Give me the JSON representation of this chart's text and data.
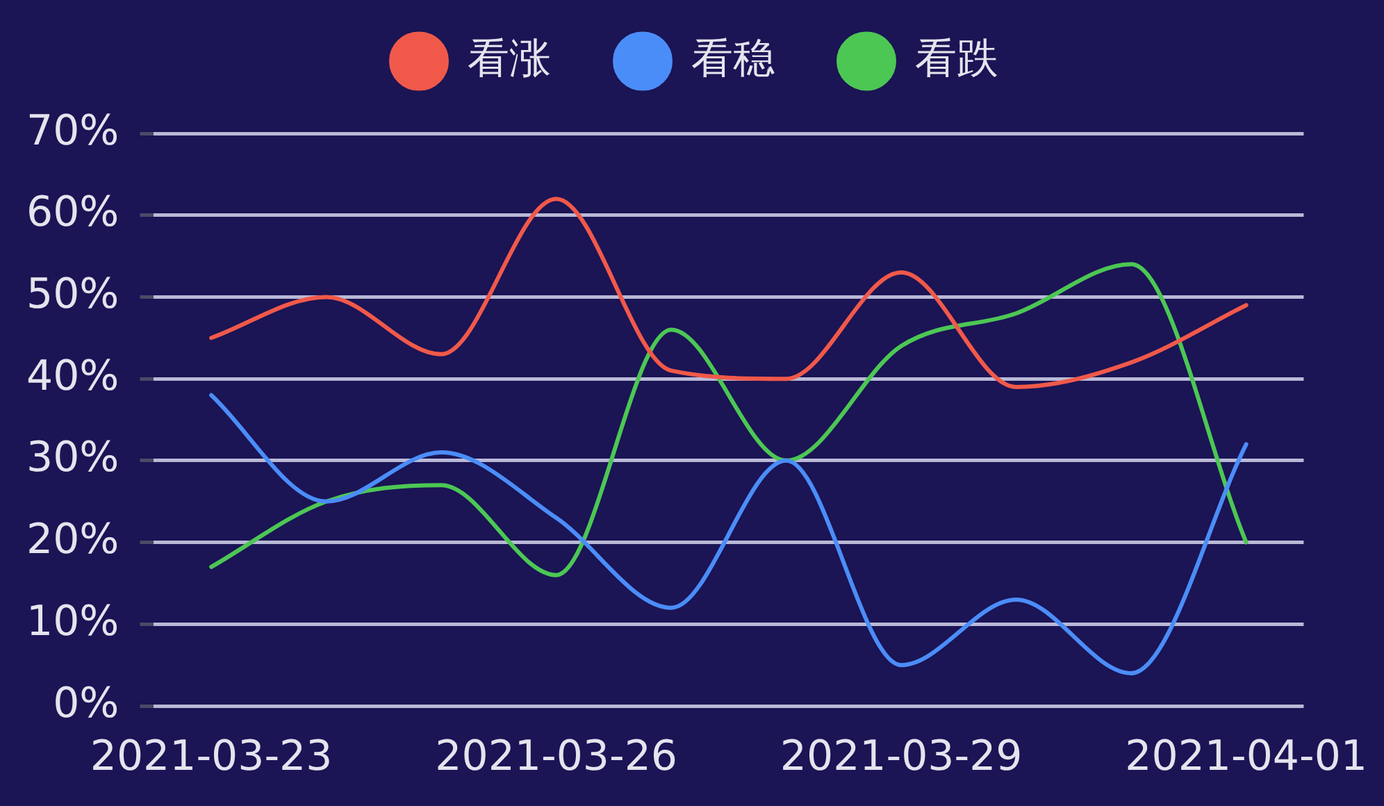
{
  "chart_data": {
    "type": "line",
    "categories": [
      "2021-03-23",
      null,
      null,
      "2021-03-26",
      null,
      null,
      "2021-03-29",
      null,
      null,
      "2021-04-01"
    ],
    "series": [
      {
        "name": "看涨",
        "color": "#f0594a",
        "values": [
          45,
          50,
          43,
          62,
          41,
          40,
          53,
          39,
          42,
          49
        ]
      },
      {
        "name": "看稳",
        "color": "#4b8df8",
        "values": [
          38,
          25,
          31,
          23,
          12,
          30,
          5,
          13,
          4,
          32
        ]
      },
      {
        "name": "看跌",
        "color": "#4cc754",
        "values": [
          17,
          25,
          27,
          16,
          46,
          30,
          44,
          48,
          54,
          20
        ]
      }
    ],
    "ylim": [
      0,
      70
    ],
    "yticks": [
      {
        "value": 0,
        "label": "0%"
      },
      {
        "value": 10,
        "label": "10%"
      },
      {
        "value": 20,
        "label": "20%"
      },
      {
        "value": 30,
        "label": "30%"
      },
      {
        "value": 40,
        "label": "40%"
      },
      {
        "value": 50,
        "label": "50%"
      },
      {
        "value": 60,
        "label": "60%"
      },
      {
        "value": 70,
        "label": "70%"
      }
    ],
    "grid": "y",
    "legend": "top",
    "marker": "none",
    "line_style": "solid"
  }
}
